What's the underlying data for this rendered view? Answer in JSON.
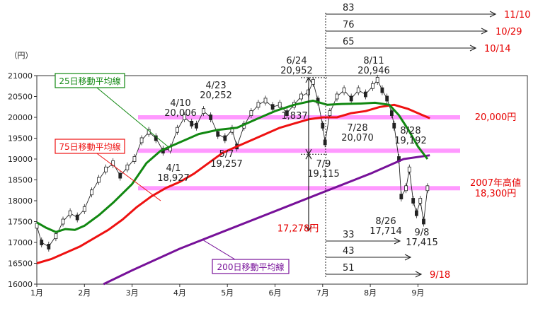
{
  "chart_data": {
    "type": "candlestick",
    "unit_label": "（円）",
    "ylim": [
      16000,
      21000
    ],
    "yticks": [
      16000,
      16500,
      17000,
      17500,
      18000,
      18500,
      19000,
      19500,
      20000,
      20500,
      21000
    ],
    "months": [
      "1月",
      "2月",
      "3月",
      "4月",
      "5月",
      "6月",
      "7月",
      "8月",
      "9月"
    ],
    "colors": {
      "ma25": "#118811",
      "ma75": "#ee1111",
      "ma200": "#771199",
      "band": "#ff99ff",
      "annotation_red": "#e60000"
    },
    "price_series": [
      {
        "month": 1.0,
        "value": 17400
      },
      {
        "month": 1.1,
        "value": 17000
      },
      {
        "month": 1.25,
        "value": 16900
      },
      {
        "month": 1.4,
        "value": 17150
      },
      {
        "month": 1.55,
        "value": 17500
      },
      {
        "month": 1.7,
        "value": 17700
      },
      {
        "month": 1.85,
        "value": 17600
      },
      {
        "month": 2.0,
        "value": 17800
      },
      {
        "month": 2.15,
        "value": 18200
      },
      {
        "month": 2.3,
        "value": 18500
      },
      {
        "month": 2.45,
        "value": 18750
      },
      {
        "month": 2.6,
        "value": 18900
      },
      {
        "month": 2.75,
        "value": 18600
      },
      {
        "month": 2.9,
        "value": 18800
      },
      {
        "month": 3.05,
        "value": 19000
      },
      {
        "month": 3.2,
        "value": 19450
      },
      {
        "month": 3.35,
        "value": 19650
      },
      {
        "month": 3.5,
        "value": 19500
      },
      {
        "month": 3.65,
        "value": 19200
      },
      {
        "month": 3.8,
        "value": 19250
      },
      {
        "month": 3.95,
        "value": 19700
      },
      {
        "month": 4.1,
        "value": 20000
      },
      {
        "month": 4.25,
        "value": 19850
      },
      {
        "month": 4.35,
        "value": 19800
      },
      {
        "month": 4.5,
        "value": 20150
      },
      {
        "month": 4.65,
        "value": 20000
      },
      {
        "month": 4.8,
        "value": 19600
      },
      {
        "month": 4.95,
        "value": 19500
      },
      {
        "month": 5.1,
        "value": 19700
      },
      {
        "month": 5.2,
        "value": 19300
      },
      {
        "month": 5.35,
        "value": 19800
      },
      {
        "month": 5.5,
        "value": 20100
      },
      {
        "month": 5.65,
        "value": 20300
      },
      {
        "month": 5.8,
        "value": 20400
      },
      {
        "month": 5.95,
        "value": 20250
      },
      {
        "month": 6.1,
        "value": 20300
      },
      {
        "month": 6.25,
        "value": 20100
      },
      {
        "month": 6.4,
        "value": 20300
      },
      {
        "month": 6.55,
        "value": 20500
      },
      {
        "month": 6.7,
        "value": 20600
      },
      {
        "month": 6.8,
        "value": 20850
      },
      {
        "month": 6.9,
        "value": 20400
      },
      {
        "month": 7.0,
        "value": 19800
      },
      {
        "month": 7.05,
        "value": 19400
      },
      {
        "month": 7.15,
        "value": 20100
      },
      {
        "month": 7.3,
        "value": 20500
      },
      {
        "month": 7.45,
        "value": 20650
      },
      {
        "month": 7.6,
        "value": 20450
      },
      {
        "month": 7.75,
        "value": 20650
      },
      {
        "month": 7.9,
        "value": 20550
      },
      {
        "month": 8.05,
        "value": 20750
      },
      {
        "month": 8.15,
        "value": 20900
      },
      {
        "month": 8.25,
        "value": 20650
      },
      {
        "month": 8.35,
        "value": 20450
      },
      {
        "month": 8.45,
        "value": 20100
      },
      {
        "month": 8.5,
        "value": 19800
      },
      {
        "month": 8.6,
        "value": 19000
      },
      {
        "month": 8.65,
        "value": 18100
      },
      {
        "month": 8.75,
        "value": 18300
      },
      {
        "month": 8.82,
        "value": 18750
      },
      {
        "month": 8.9,
        "value": 18000
      },
      {
        "month": 8.97,
        "value": 17700
      },
      {
        "month": 9.05,
        "value": 18000
      },
      {
        "month": 9.12,
        "value": 17500
      },
      {
        "month": 9.2,
        "value": 18300
      }
    ],
    "ma25": [
      {
        "month": 1.0,
        "value": 17480
      },
      {
        "month": 1.2,
        "value": 17350
      },
      {
        "month": 1.4,
        "value": 17250
      },
      {
        "month": 1.6,
        "value": 17320
      },
      {
        "month": 1.8,
        "value": 17300
      },
      {
        "month": 2.0,
        "value": 17400
      },
      {
        "month": 2.3,
        "value": 17650
      },
      {
        "month": 2.6,
        "value": 17950
      },
      {
        "month": 3.0,
        "value": 18400
      },
      {
        "month": 3.3,
        "value": 18900
      },
      {
        "month": 3.6,
        "value": 19200
      },
      {
        "month": 4.0,
        "value": 19400
      },
      {
        "month": 4.4,
        "value": 19600
      },
      {
        "month": 4.8,
        "value": 19700
      },
      {
        "month": 5.2,
        "value": 19750
      },
      {
        "month": 5.6,
        "value": 19950
      },
      {
        "month": 6.0,
        "value": 20150
      },
      {
        "month": 6.4,
        "value": 20300
      },
      {
        "month": 6.8,
        "value": 20400
      },
      {
        "month": 7.1,
        "value": 20300
      },
      {
        "month": 7.4,
        "value": 20320
      },
      {
        "month": 7.8,
        "value": 20330
      },
      {
        "month": 8.1,
        "value": 20350
      },
      {
        "month": 8.4,
        "value": 20300
      },
      {
        "month": 8.6,
        "value": 20050
      },
      {
        "month": 8.8,
        "value": 19700
      },
      {
        "month": 9.0,
        "value": 19300
      },
      {
        "month": 9.2,
        "value": 19000
      }
    ],
    "ma75": [
      {
        "month": 1.0,
        "value": 16500
      },
      {
        "month": 1.3,
        "value": 16600
      },
      {
        "month": 1.6,
        "value": 16750
      },
      {
        "month": 1.9,
        "value": 16900
      },
      {
        "month": 2.2,
        "value": 17100
      },
      {
        "month": 2.5,
        "value": 17300
      },
      {
        "month": 2.8,
        "value": 17550
      },
      {
        "month": 3.1,
        "value": 17850
      },
      {
        "month": 3.4,
        "value": 18100
      },
      {
        "month": 3.7,
        "value": 18300
      },
      {
        "month": 4.0,
        "value": 18450
      },
      {
        "month": 4.3,
        "value": 18650
      },
      {
        "month": 4.6,
        "value": 18900
      },
      {
        "month": 4.9,
        "value": 19150
      },
      {
        "month": 5.2,
        "value": 19300
      },
      {
        "month": 5.5,
        "value": 19450
      },
      {
        "month": 5.8,
        "value": 19600
      },
      {
        "month": 6.1,
        "value": 19750
      },
      {
        "month": 6.4,
        "value": 19850
      },
      {
        "month": 6.7,
        "value": 19950
      },
      {
        "month": 7.0,
        "value": 20000
      },
      {
        "month": 7.3,
        "value": 20000
      },
      {
        "month": 7.6,
        "value": 20100
      },
      {
        "month": 7.9,
        "value": 20150
      },
      {
        "month": 8.2,
        "value": 20250
      },
      {
        "month": 8.5,
        "value": 20300
      },
      {
        "month": 8.8,
        "value": 20200
      },
      {
        "month": 9.1,
        "value": 20050
      },
      {
        "month": 9.25,
        "value": 19980
      }
    ],
    "ma200": [
      {
        "month": 2.4,
        "value": 16000
      },
      {
        "month": 3.0,
        "value": 16330
      },
      {
        "month": 4.0,
        "value": 16850
      },
      {
        "month": 5.0,
        "value": 17300
      },
      {
        "month": 6.0,
        "value": 17750
      },
      {
        "month": 7.0,
        "value": 18200
      },
      {
        "month": 8.0,
        "value": 18650
      },
      {
        "month": 8.7,
        "value": 19000
      },
      {
        "month": 9.25,
        "value": 19090
      }
    ],
    "hlines": [
      {
        "value": 20000,
        "label": "20,000円"
      },
      {
        "value": 19200,
        "label": ""
      },
      {
        "value": 18300,
        "label": "2007年高値\n18,300円"
      }
    ],
    "ma_labels": [
      {
        "text": "25日移動平均線",
        "series": "ma25"
      },
      {
        "text": "75日移動平均線",
        "series": "ma75"
      },
      {
        "text": "200日移動平均線",
        "series": "ma200"
      }
    ],
    "annotations": [
      {
        "date": "4/1",
        "value": "18,927",
        "point": {
          "month": 3.7,
          "value": 19200
        }
      },
      {
        "date": "4/10",
        "value": "20,006",
        "point": {
          "month": 4.1,
          "value": 20000
        }
      },
      {
        "date": "4/23",
        "value": "20,252",
        "point": {
          "month": 4.6,
          "value": 20150
        }
      },
      {
        "date": "5/7",
        "value": "19,257",
        "point": {
          "month": 5.05,
          "value": 19400
        }
      },
      {
        "date": "6/24",
        "value": "20,952",
        "point": {
          "month": 6.8,
          "value": 20850
        }
      },
      {
        "date": "7/9",
        "value": "19,115",
        "point": {
          "month": 7.05,
          "value": 19250
        }
      },
      {
        "date": "7/28",
        "value": "20,070",
        "point": {
          "month": 7.65,
          "value": 20200
        }
      },
      {
        "date": "8/11",
        "value": "20,946",
        "point": {
          "month": 8.15,
          "value": 20900
        }
      },
      {
        "date": "8/26",
        "value": "17,714",
        "point": {
          "month": 8.7,
          "value": 17800
        }
      },
      {
        "date": "8/28",
        "value": "19,192",
        "point": {
          "month": 8.95,
          "value": 19200
        }
      },
      {
        "date": "9/8",
        "value": "17,415",
        "point": {
          "month": 9.1,
          "value": 17450
        }
      }
    ],
    "spans": [
      {
        "label": "1,837",
        "from": 20952,
        "to": 19115
      },
      {
        "label": "17,278円",
        "from": 19115,
        "to": 17278
      }
    ],
    "day_counts": [
      {
        "count": "83",
        "date": "11/10"
      },
      {
        "count": "76",
        "date": "10/29"
      },
      {
        "count": "65",
        "date": "10/14"
      },
      {
        "count": "33",
        "date": ""
      },
      {
        "count": "43",
        "date": ""
      },
      {
        "count": "51",
        "date": "9/18"
      }
    ]
  }
}
